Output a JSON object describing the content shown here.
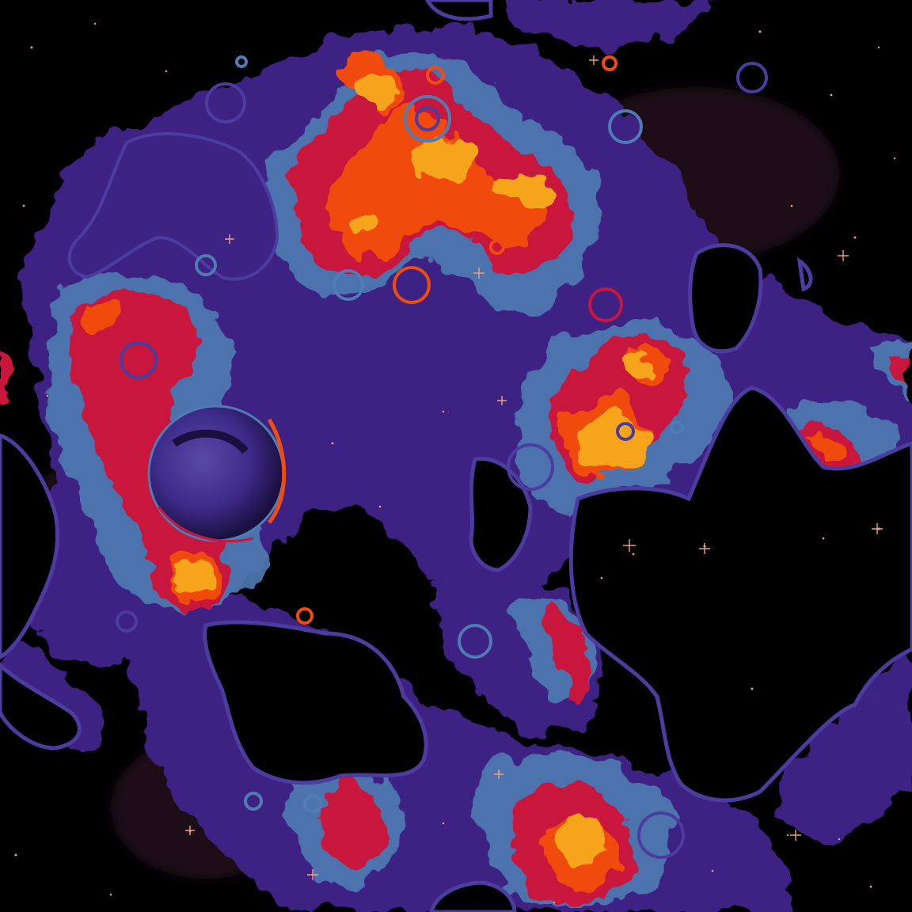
{
  "scene": {
    "description_free": true,
    "palette": {
      "space": "#000000",
      "dust": "#1c1116",
      "violet": "#3c2384",
      "indigo": "#4c3ca0",
      "steel": "#4f7cb4",
      "crimson": "#c8163c",
      "orange": "#f04c10",
      "amber": "#f5a41c",
      "gold": "#e8b020",
      "star": "#f0a080"
    }
  }
}
